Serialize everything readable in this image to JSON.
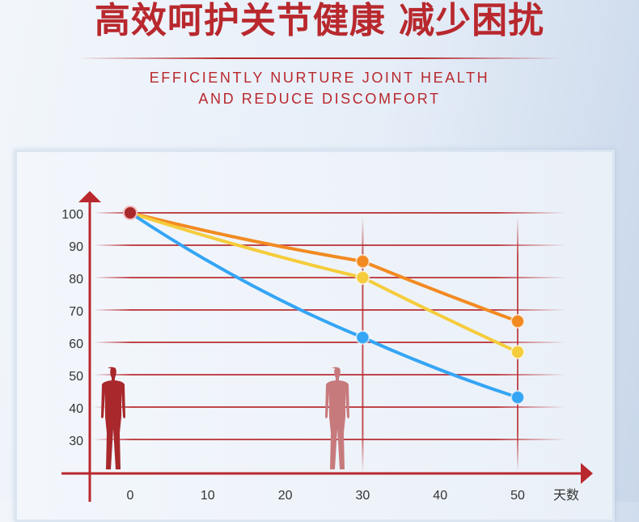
{
  "header": {
    "title": "高效呵护关节健康 减少困扰",
    "subtitle_line1": "EFFICIENTLY NURTURE JOINT HEALTH",
    "subtitle_line2": "AND REDUCE DISCOMFORT"
  },
  "chart_data": {
    "type": "line",
    "title": "",
    "xlabel": "天数",
    "ylabel": "",
    "x_ticks": [
      0,
      10,
      20,
      30,
      40,
      50
    ],
    "y_ticks": [
      100,
      90,
      80,
      70,
      60,
      50,
      40,
      30
    ],
    "xlim": [
      0,
      50
    ],
    "ylim": [
      30,
      100
    ],
    "grid": true,
    "x": [
      0,
      30,
      50
    ],
    "series": [
      {
        "name": "orange",
        "color": "#f28a21",
        "values": [
          100,
          85,
          66.5
        ]
      },
      {
        "name": "yellow",
        "color": "#f5cc3c",
        "values": [
          100,
          80,
          57
        ]
      },
      {
        "name": "blue",
        "color": "#35a5f5",
        "values": [
          100,
          61.5,
          43
        ]
      }
    ],
    "start_point_color": "#a8282b",
    "axis_color": "#b8282d"
  }
}
